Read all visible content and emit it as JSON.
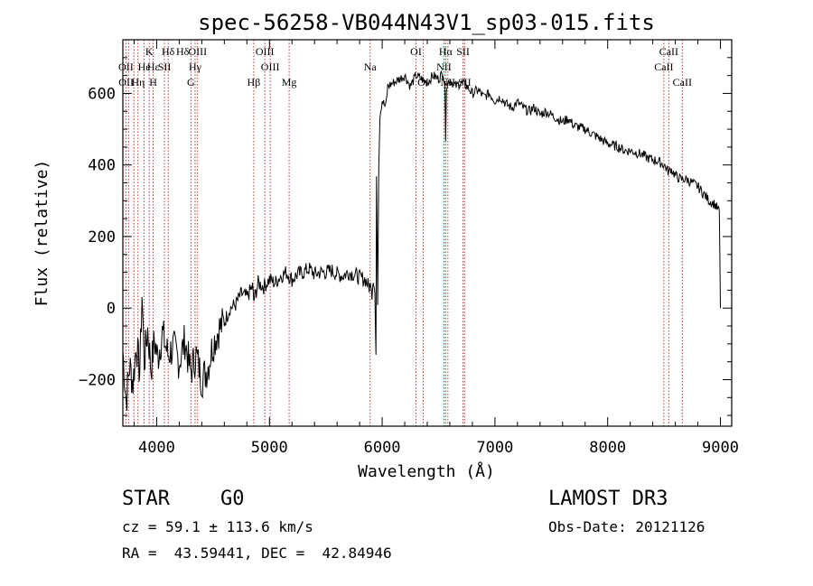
{
  "chart_data": {
    "type": "line",
    "title": "spec-56258-VB044N43V1_sp03-015.fits",
    "xlabel": "Wavelength (Å)",
    "ylabel": "Flux (relative)",
    "xlim": [
      3700,
      9100
    ],
    "ylim": [
      -330,
      750
    ],
    "x_ticks": [
      4000,
      5000,
      6000,
      7000,
      8000,
      9000
    ],
    "y_ticks": [
      -200,
      0,
      200,
      400,
      600
    ],
    "grid": false,
    "series": [
      {
        "name": "spectrum",
        "color": "#000000",
        "points": [
          [
            3700,
            -120
          ],
          [
            3730,
            -260
          ],
          [
            3760,
            -160
          ],
          [
            3790,
            -210
          ],
          [
            3820,
            -100
          ],
          [
            3850,
            -180
          ],
          [
            3870,
            40
          ],
          [
            3890,
            -150
          ],
          [
            3920,
            -60
          ],
          [
            3950,
            -170
          ],
          [
            3980,
            -90
          ],
          [
            4010,
            -140
          ],
          [
            4050,
            -70
          ],
          [
            4100,
            -130
          ],
          [
            4150,
            -110
          ],
          [
            4200,
            -150
          ],
          [
            4250,
            -90
          ],
          [
            4300,
            -180
          ],
          [
            4350,
            -130
          ],
          [
            4400,
            -200
          ],
          [
            4450,
            -170
          ],
          [
            4500,
            -100
          ],
          [
            4550,
            -60
          ],
          [
            4600,
            -40
          ],
          [
            4650,
            0
          ],
          [
            4700,
            10
          ],
          [
            4750,
            40
          ],
          [
            4800,
            30
          ],
          [
            4850,
            60
          ],
          [
            4861,
            20
          ],
          [
            4900,
            70
          ],
          [
            4950,
            60
          ],
          [
            5000,
            80
          ],
          [
            5050,
            70
          ],
          [
            5100,
            90
          ],
          [
            5150,
            100
          ],
          [
            5200,
            80
          ],
          [
            5250,
            95
          ],
          [
            5300,
            100
          ],
          [
            5350,
            110
          ],
          [
            5400,
            95
          ],
          [
            5450,
            100
          ],
          [
            5500,
            100
          ],
          [
            5550,
            105
          ],
          [
            5600,
            95
          ],
          [
            5650,
            90
          ],
          [
            5700,
            100
          ],
          [
            5750,
            95
          ],
          [
            5800,
            85
          ],
          [
            5850,
            80
          ],
          [
            5880,
            60
          ],
          [
            5895,
            60
          ],
          [
            5900,
            80
          ],
          [
            5910,
            40
          ],
          [
            5920,
            90
          ],
          [
            5935,
            40
          ],
          [
            5945,
            -150
          ],
          [
            5950,
            380
          ],
          [
            5960,
            20
          ],
          [
            5970,
            400
          ],
          [
            5980,
            540
          ],
          [
            6000,
            580
          ],
          [
            6030,
            560
          ],
          [
            6050,
            620
          ],
          [
            6100,
            630
          ],
          [
            6150,
            640
          ],
          [
            6200,
            650
          ],
          [
            6250,
            620
          ],
          [
            6300,
            650
          ],
          [
            6350,
            640
          ],
          [
            6400,
            630
          ],
          [
            6450,
            650
          ],
          [
            6500,
            640
          ],
          [
            6540,
            660
          ],
          [
            6556,
            620
          ],
          [
            6563,
            480
          ],
          [
            6570,
            620
          ],
          [
            6600,
            640
          ],
          [
            6650,
            620
          ],
          [
            6700,
            630
          ],
          [
            6750,
            620
          ],
          [
            6800,
            600
          ],
          [
            6850,
            610
          ],
          [
            6900,
            590
          ],
          [
            6950,
            600
          ],
          [
            7000,
            580
          ],
          [
            7050,
            590
          ],
          [
            7100,
            570
          ],
          [
            7150,
            560
          ],
          [
            7200,
            575
          ],
          [
            7250,
            560
          ],
          [
            7300,
            550
          ],
          [
            7350,
            560
          ],
          [
            7400,
            540
          ],
          [
            7450,
            550
          ],
          [
            7500,
            540
          ],
          [
            7550,
            530
          ],
          [
            7600,
            520
          ],
          [
            7650,
            530
          ],
          [
            7700,
            510
          ],
          [
            7750,
            505
          ],
          [
            7800,
            500
          ],
          [
            7850,
            490
          ],
          [
            7900,
            480
          ],
          [
            7950,
            470
          ],
          [
            8000,
            460
          ],
          [
            8050,
            455
          ],
          [
            8100,
            450
          ],
          [
            8150,
            440
          ],
          [
            8200,
            440
          ],
          [
            8250,
            435
          ],
          [
            8300,
            430
          ],
          [
            8350,
            420
          ],
          [
            8400,
            415
          ],
          [
            8450,
            410
          ],
          [
            8500,
            400
          ],
          [
            8542,
            380
          ],
          [
            8560,
            390
          ],
          [
            8600,
            370
          ],
          [
            8650,
            360
          ],
          [
            8700,
            360
          ],
          [
            8750,
            350
          ],
          [
            8800,
            340
          ],
          [
            8850,
            320
          ],
          [
            8900,
            300
          ],
          [
            8950,
            290
          ],
          [
            8990,
            270
          ],
          [
            9000,
            0
          ]
        ]
      }
    ],
    "line_labels": [
      {
        "label": "Hδ",
        "wave": 4102,
        "row": 1
      },
      {
        "label": "OII",
        "wave": 3727,
        "row": 2
      },
      {
        "label": "OII",
        "wave": 3729,
        "row": 3
      },
      {
        "label": "Hε",
        "wave": 3970,
        "row": 2
      },
      {
        "label": "He",
        "wave": 3889,
        "row": 2
      },
      {
        "label": "K",
        "wave": 3934,
        "row": 1
      },
      {
        "label": "H",
        "wave": 3969,
        "row": 3
      },
      {
        "label": "Hη",
        "wave": 3835,
        "row": 3
      },
      {
        "label": "SII",
        "wave": 4069,
        "row": 2
      },
      {
        "label": "Hδ",
        "wave": 4102,
        "row": 1,
        "offset": 1
      },
      {
        "label": "OIII",
        "wave": 4363,
        "row": 1
      },
      {
        "label": "Hγ",
        "wave": 4341,
        "row": 2
      },
      {
        "label": "G",
        "wave": 4304,
        "row": 3
      },
      {
        "label": "Hβ",
        "wave": 4861,
        "row": 3
      },
      {
        "label": "OIII",
        "wave": 4959,
        "row": 1
      },
      {
        "label": "OIII",
        "wave": 5007,
        "row": 2
      },
      {
        "label": "Mg",
        "wave": 5175,
        "row": 3
      },
      {
        "label": "Na",
        "wave": 5893,
        "row": 2
      },
      {
        "label": "OI",
        "wave": 6300,
        "row": 1
      },
      {
        "label": "OI",
        "wave": 6364,
        "row": 3
      },
      {
        "label": "Hα",
        "wave": 6563,
        "row": 1
      },
      {
        "label": "NII",
        "wave": 6548,
        "row": 2
      },
      {
        "label": "NII",
        "wave": 6583,
        "row": 3
      },
      {
        "label": "SII",
        "wave": 6717,
        "row": 1
      },
      {
        "label": "SII",
        "wave": 6731,
        "row": 3
      },
      {
        "label": "CaII",
        "wave": 8542,
        "row": 1
      },
      {
        "label": "CaII",
        "wave": 8498,
        "row": 2
      },
      {
        "label": "CaII",
        "wave": 8662,
        "row": 3
      }
    ],
    "marker_lines": [
      3727,
      3750,
      3798,
      3835,
      3889,
      3934,
      3969,
      4069,
      4102,
      4304,
      4341,
      4363,
      4861,
      4959,
      5007,
      5175,
      5893,
      6300,
      6364,
      6548,
      6563,
      6583,
      6717,
      6731,
      8498,
      8542,
      8662
    ],
    "marker_color": "#b22222"
  },
  "info": {
    "object_class": "STAR",
    "subclass": "G0",
    "survey": "LAMOST DR3",
    "cz": "cz = 59.1 ± 113.6 km/s",
    "obs_date": "Obs-Date: 20121126",
    "coords": "RA =  43.59441, DEC =  42.84946"
  }
}
